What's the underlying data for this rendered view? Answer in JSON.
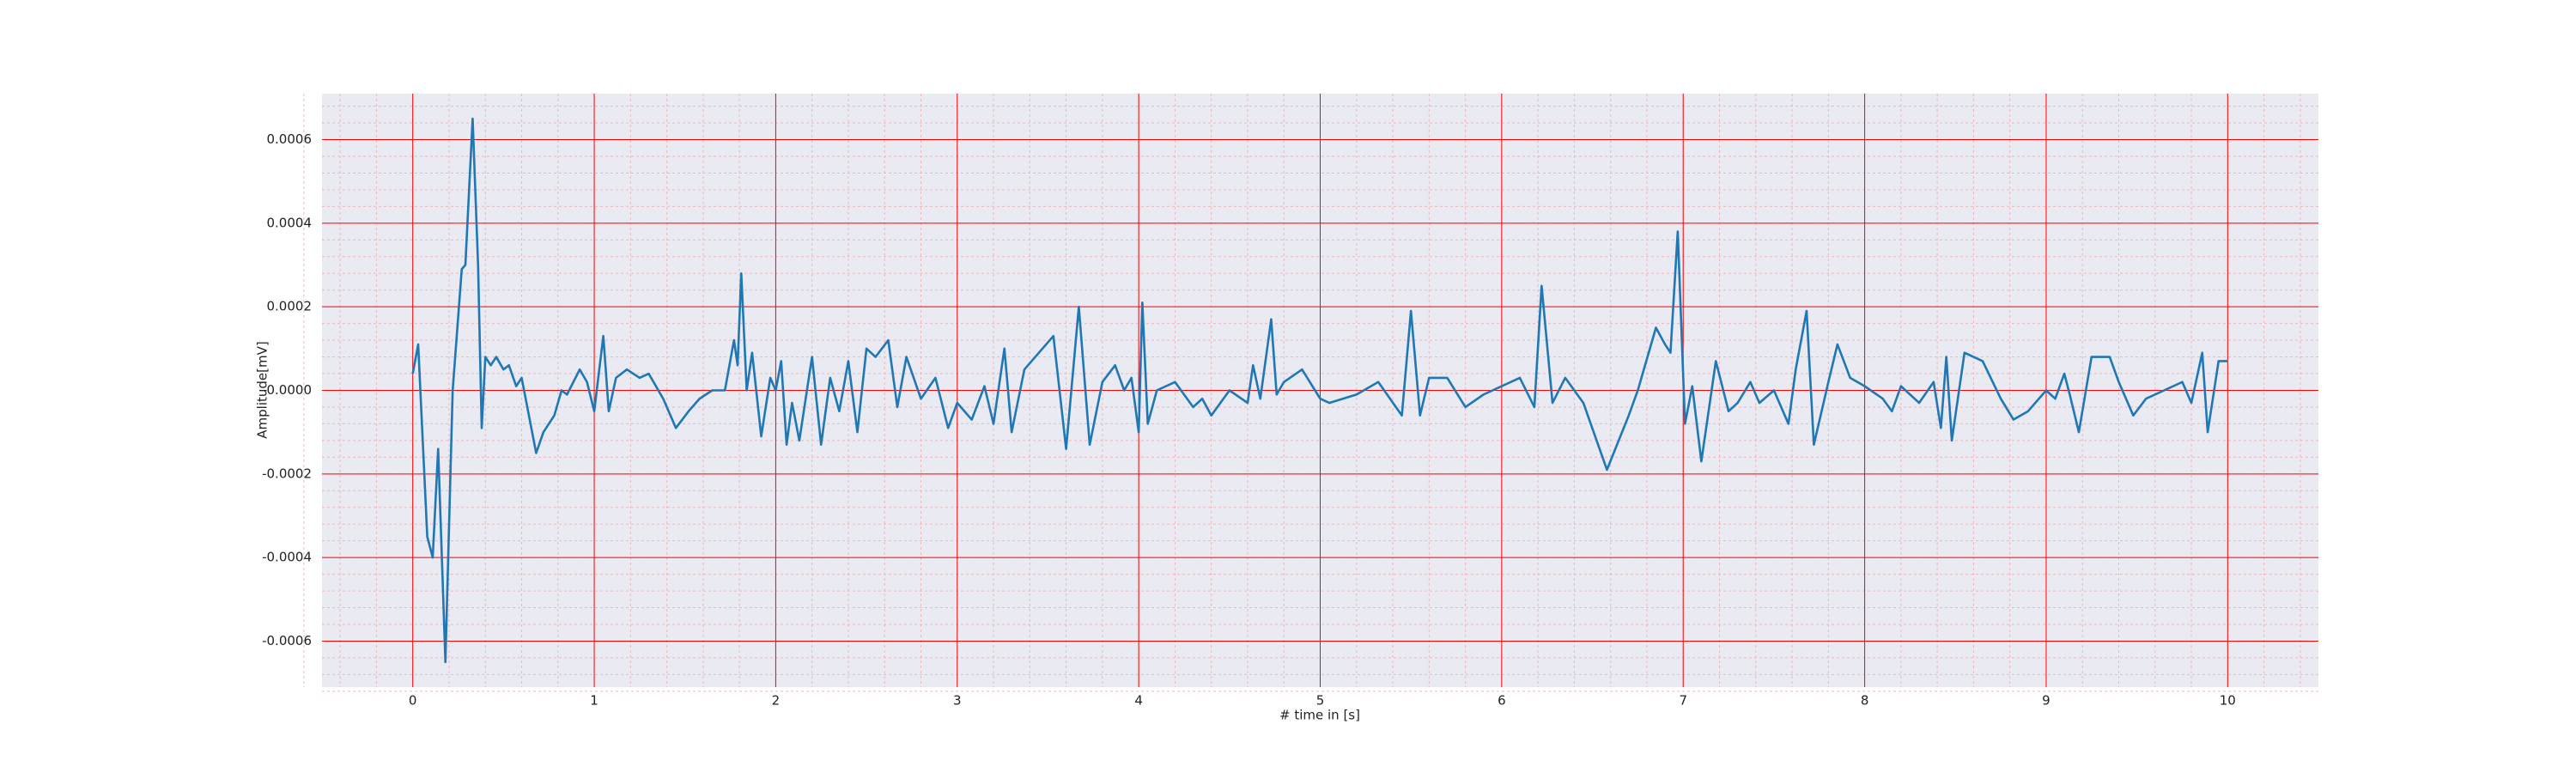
{
  "chart_data": {
    "type": "line",
    "xlabel": "# time in [s]",
    "ylabel": "Amplitude[mV]",
    "x": [
      0,
      0.03,
      0.08,
      0.11,
      0.14,
      0.18,
      0.22,
      0.27,
      0.29,
      0.33,
      0.36,
      0.38,
      0.4,
      0.43,
      0.46,
      0.5,
      0.53,
      0.57,
      0.6,
      0.68,
      0.72,
      0.78,
      0.82,
      0.85,
      0.92,
      0.96,
      1.0,
      1.05,
      1.08,
      1.12,
      1.18,
      1.25,
      1.3,
      1.38,
      1.45,
      1.52,
      1.58,
      1.65,
      1.72,
      1.77,
      1.79,
      1.81,
      1.84,
      1.87,
      1.92,
      1.97,
      2.0,
      2.03,
      2.06,
      2.09,
      2.13,
      2.2,
      2.25,
      2.3,
      2.35,
      2.4,
      2.45,
      2.5,
      2.55,
      2.62,
      2.67,
      2.72,
      2.8,
      2.88,
      2.95,
      3.0,
      3.08,
      3.15,
      3.2,
      3.26,
      3.3,
      3.37,
      3.45,
      3.53,
      3.6,
      3.67,
      3.73,
      3.8,
      3.87,
      3.92,
      3.96,
      4.0,
      4.02,
      4.05,
      4.1,
      4.2,
      4.3,
      4.35,
      4.4,
      4.5,
      4.6,
      4.63,
      4.67,
      4.73,
      4.76,
      4.8,
      4.9,
      5.0,
      5.05,
      5.2,
      5.32,
      5.45,
      5.5,
      5.55,
      5.6,
      5.7,
      5.8,
      5.9,
      6.0,
      6.1,
      6.18,
      6.22,
      6.28,
      6.35,
      6.45,
      6.58,
      6.7,
      6.75,
      6.85,
      6.9,
      6.93,
      6.97,
      7.01,
      7.05,
      7.1,
      7.18,
      7.25,
      7.3,
      7.37,
      7.42,
      7.5,
      7.58,
      7.62,
      7.68,
      7.72,
      7.8,
      7.85,
      7.92,
      8.0,
      8.1,
      8.15,
      8.2,
      8.3,
      8.38,
      8.42,
      8.45,
      8.48,
      8.55,
      8.65,
      8.75,
      8.82,
      8.9,
      9.0,
      9.05,
      9.1,
      9.13,
      9.18,
      9.25,
      9.35,
      9.4,
      9.48,
      9.55,
      9.65,
      9.75,
      9.8,
      9.86,
      9.89,
      9.95,
      10.0
    ],
    "series": [
      {
        "color": "#1f77b4",
        "values": [
          4e-05,
          0.00011,
          -0.00035,
          -0.0004,
          -0.00014,
          -0.00065,
          0,
          0.00029,
          0.0003,
          0.00065,
          0.0003,
          -9e-05,
          8e-05,
          6e-05,
          8e-05,
          5e-05,
          6e-05,
          1e-05,
          3e-05,
          -0.00015,
          -0.0001,
          -6e-05,
          0,
          -1e-05,
          5e-05,
          2e-05,
          -5e-05,
          0.00013,
          -5e-05,
          3e-05,
          5e-05,
          3e-05,
          4e-05,
          -2e-05,
          -9e-05,
          -5e-05,
          -2e-05,
          0,
          0,
          0.00012,
          6e-05,
          0.00028,
          0,
          9e-05,
          -0.00011,
          3e-05,
          0,
          7e-05,
          -0.00013,
          -3e-05,
          -0.00012,
          8e-05,
          -0.00013,
          3e-05,
          -5e-05,
          7e-05,
          -0.0001,
          0.0001,
          8e-05,
          0.00012,
          -4e-05,
          8e-05,
          -2e-05,
          3e-05,
          -9e-05,
          -3e-05,
          -7e-05,
          1e-05,
          -8e-05,
          0.0001,
          -0.0001,
          5e-05,
          9e-05,
          0.00013,
          -0.00014,
          0.0002,
          -0.00013,
          2e-05,
          6e-05,
          0,
          3e-05,
          -0.0001,
          0.00021,
          -8e-05,
          0,
          2e-05,
          -4e-05,
          -2e-05,
          -6e-05,
          0,
          -3e-05,
          6e-05,
          -2e-05,
          0.00017,
          -1e-05,
          2e-05,
          5e-05,
          -2e-05,
          -3e-05,
          -1e-05,
          2e-05,
          -6e-05,
          0.00019,
          -6e-05,
          3e-05,
          3e-05,
          -4e-05,
          -1e-05,
          1e-05,
          3e-05,
          -4e-05,
          0.00025,
          -3e-05,
          3e-05,
          -3e-05,
          -0.00019,
          -6e-05,
          0,
          0.00015,
          0.00011,
          9e-05,
          0.00038,
          -8e-05,
          1e-05,
          -0.00017,
          7e-05,
          -5e-05,
          -3e-05,
          2e-05,
          -3e-05,
          0,
          -8e-05,
          5e-05,
          0.00019,
          -0.00013,
          2e-05,
          0.00011,
          3e-05,
          1e-05,
          -2e-05,
          -5e-05,
          1e-05,
          -3e-05,
          2e-05,
          -9e-05,
          8e-05,
          -0.00012,
          9e-05,
          7e-05,
          -2e-05,
          -7e-05,
          -5e-05,
          0,
          -2e-05,
          4e-05,
          -1e-05,
          -0.0001,
          8e-05,
          8e-05,
          2e-05,
          -6e-05,
          -2e-05,
          0,
          2e-05,
          -3e-05,
          9e-05,
          -0.0001,
          7e-05,
          7e-05
        ]
      }
    ],
    "xlim": [
      -0.5,
      10.5
    ],
    "xticks": [
      0,
      1,
      2,
      3,
      4,
      5,
      6,
      7,
      8,
      9,
      10
    ],
    "ylim": [
      -0.00071,
      0.00071
    ],
    "yticks": [
      -0.0006,
      -0.0004,
      -0.0002,
      {
        "value": 0,
        "label": "0.0000"
      },
      0.0002,
      0.0004,
      0.0006
    ],
    "grid": true,
    "grid_color": "#ff0000",
    "background": "#eaeaf2"
  }
}
